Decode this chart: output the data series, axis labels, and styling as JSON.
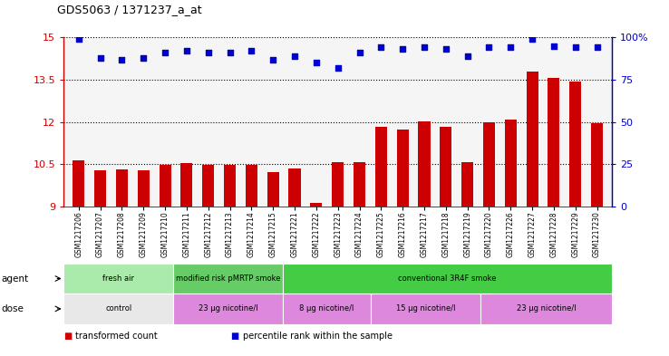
{
  "title": "GDS5063 / 1371237_a_at",
  "samples": [
    "GSM1217206",
    "GSM1217207",
    "GSM1217208",
    "GSM1217209",
    "GSM1217210",
    "GSM1217211",
    "GSM1217212",
    "GSM1217213",
    "GSM1217214",
    "GSM1217215",
    "GSM1217221",
    "GSM1217222",
    "GSM1217223",
    "GSM1217224",
    "GSM1217225",
    "GSM1217216",
    "GSM1217217",
    "GSM1217218",
    "GSM1217219",
    "GSM1217220",
    "GSM1217226",
    "GSM1217227",
    "GSM1217228",
    "GSM1217229",
    "GSM1217230"
  ],
  "bar_values": [
    10.65,
    10.28,
    10.3,
    10.28,
    10.48,
    10.55,
    10.47,
    10.47,
    10.48,
    10.22,
    10.35,
    9.12,
    10.58,
    10.57,
    11.82,
    11.74,
    12.02,
    11.82,
    10.57,
    11.98,
    12.08,
    13.78,
    13.55,
    13.43,
    11.97
  ],
  "percentile_values": [
    99,
    88,
    87,
    88,
    91,
    92,
    91,
    91,
    92,
    87,
    89,
    85,
    82,
    91,
    94,
    93,
    94,
    93,
    89,
    94,
    94,
    99,
    95,
    94,
    94
  ],
  "bar_color": "#cc0000",
  "percentile_color": "#0000cc",
  "ylim": [
    9,
    15
  ],
  "yticks": [
    9,
    10.5,
    12,
    13.5,
    15
  ],
  "ytick_labels": [
    "9",
    "10.5",
    "12",
    "13.5",
    "15"
  ],
  "y2lim": [
    0,
    100
  ],
  "y2ticks": [
    0,
    25,
    50,
    75,
    100
  ],
  "y2tick_labels": [
    "0",
    "25",
    "50",
    "75",
    "100%"
  ],
  "hlines": [
    10.5,
    12,
    13.5,
    15
  ],
  "agent_groups": [
    {
      "label": "fresh air",
      "start": 0,
      "end": 5,
      "color": "#aaeaaa"
    },
    {
      "label": "modified risk pMRTP smoke",
      "start": 5,
      "end": 10,
      "color": "#66cc66"
    },
    {
      "label": "conventional 3R4F smoke",
      "start": 10,
      "end": 25,
      "color": "#44cc44"
    }
  ],
  "dose_groups": [
    {
      "label": "control",
      "start": 0,
      "end": 5,
      "color": "#e8e8e8"
    },
    {
      "label": "23 μg nicotine/l",
      "start": 5,
      "end": 10,
      "color": "#dd88dd"
    },
    {
      "label": "8 μg nicotine/l",
      "start": 10,
      "end": 14,
      "color": "#dd88dd"
    },
    {
      "label": "15 μg nicotine/l",
      "start": 14,
      "end": 19,
      "color": "#dd88dd"
    },
    {
      "label": "23 μg nicotine/l",
      "start": 19,
      "end": 25,
      "color": "#dd88dd"
    }
  ],
  "legend_items": [
    {
      "label": "transformed count",
      "color": "#cc0000"
    },
    {
      "label": "percentile rank within the sample",
      "color": "#0000cc"
    }
  ],
  "bg_color": "#ffffff"
}
